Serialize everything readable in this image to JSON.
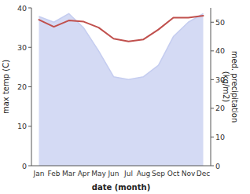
{
  "chart_data": {
    "type": "line",
    "categories": [
      "Jan",
      "Feb",
      "Mar",
      "Apr",
      "May",
      "Jun",
      "Jul",
      "Aug",
      "Sep",
      "Oct",
      "Nov",
      "Dec"
    ],
    "series": [
      {
        "type": "area",
        "axis": "y2",
        "color": "#c5cdf0",
        "values": [
          52.0,
          50.0,
          53.0,
          48.0,
          40.0,
          31.0,
          30.0,
          31.0,
          35.0,
          45.0,
          50.0,
          53.0
        ]
      },
      {
        "type": "line",
        "color": "#c0504d",
        "values": [
          37.0,
          35.2,
          36.8,
          36.5,
          35.0,
          32.2,
          31.5,
          32.0,
          34.5,
          37.5,
          37.5,
          38.0
        ]
      }
    ],
    "x_label": "date (month)",
    "y_label": "max temp (C)",
    "y2_label": "med. precipitation\n(kg/m2)",
    "ylim": [
      0,
      40
    ],
    "yticks": [
      0,
      10,
      20,
      30,
      40
    ],
    "y2lim": [
      0,
      55
    ],
    "y2ticks": [
      0,
      10,
      20,
      30,
      40,
      50
    ],
    "grid": false
  }
}
